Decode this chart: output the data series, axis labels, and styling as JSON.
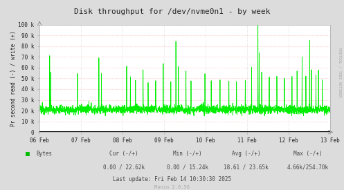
{
  "title": "Disk throughput for /dev/nvme0n1 - by week",
  "ylabel": "Pr second read (-) / write (+)",
  "background_color": "#dcdcdc",
  "plot_bg_color": "#ffffff",
  "grid_color_h": "#ffaaaa",
  "grid_color_v": "#cccccc",
  "line_color": "#00ee00",
  "axis_color": "#aaaaaa",
  "text_color": "#222222",
  "footer_text_color": "#444444",
  "ylim": [
    0,
    100000
  ],
  "yticks": [
    0,
    10000,
    20000,
    30000,
    40000,
    50000,
    60000,
    70000,
    80000,
    90000,
    100000
  ],
  "ytick_labels": [
    "0",
    "10 k",
    "20 k",
    "30 k",
    "40 k",
    "50 k",
    "60 k",
    "70 k",
    "80 k",
    "90 k",
    "100 k"
  ],
  "xdate_labels": [
    "06 Feb",
    "07 Feb",
    "08 Feb",
    "09 Feb",
    "10 Feb",
    "11 Feb",
    "12 Feb",
    "13 Feb"
  ],
  "legend_label": "Bytes",
  "legend_color": "#00bb00",
  "cur_label": "Cur (-/+)",
  "cur_val": "0.00 / 22.62k",
  "min_label": "Min (-/+)",
  "min_val": "0.00 / 15.24k",
  "avg_label": "Avg (-/+)",
  "avg_val": "18.61 / 23.65k",
  "max_label": "Max (-/+)",
  "max_val": "4.66k/254.70k",
  "last_update": "Last update: Fri Feb 14 10:30:30 2025",
  "munin_label": "Munin 2.0.56",
  "rrdtool_label": "RRDTOOL / TOBI OETIKER"
}
